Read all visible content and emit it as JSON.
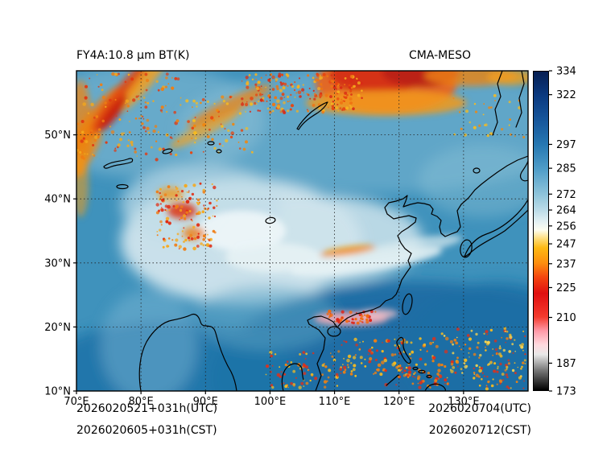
{
  "figure": {
    "title_left": "FY4A:10.8 μm BT(K)",
    "title_right": "CMA-MESO"
  },
  "footer": {
    "init_utc": "2026020521+031h(UTC)",
    "init_cst": "2026020605+031h(CST)",
    "valid_utc": "2026020704(UTC)",
    "valid_cst": "2026020712(CST)"
  },
  "chart_data": {
    "type": "heatmap",
    "title": "FY4A:10.8 μm BT(K)",
    "model": "CMA-MESO",
    "units": "K",
    "grid": true,
    "x_axis": {
      "range": [
        70,
        140
      ],
      "ticks": [
        {
          "value": 70,
          "label": "70°E"
        },
        {
          "value": 80,
          "label": "80°E"
        },
        {
          "value": 90,
          "label": "90°E"
        },
        {
          "value": 100,
          "label": "100°E"
        },
        {
          "value": 110,
          "label": "110°E"
        },
        {
          "value": 120,
          "label": "120°E"
        },
        {
          "value": 130,
          "label": "130°E"
        }
      ]
    },
    "y_axis": {
      "range": [
        10,
        60
      ],
      "ticks": [
        {
          "value": 10,
          "label": "10°N"
        },
        {
          "value": 20,
          "label": "20°N"
        },
        {
          "value": 30,
          "label": "30°N"
        },
        {
          "value": 40,
          "label": "40°N"
        },
        {
          "value": 50,
          "label": "50°N"
        }
      ]
    },
    "colorbar": {
      "min": 173,
      "max": 334,
      "ticks": [
        334,
        322,
        297,
        285,
        272,
        264,
        256,
        247,
        237,
        225,
        210,
        187,
        173
      ],
      "stops": [
        {
          "value": 173,
          "color": "#000000"
        },
        {
          "value": 183,
          "color": "#777777"
        },
        {
          "value": 191,
          "color": "#e8e8e8"
        },
        {
          "value": 196,
          "color": "#ffd9de"
        },
        {
          "value": 203,
          "color": "#ff9aa8"
        },
        {
          "value": 210,
          "color": "#f43b2e"
        },
        {
          "value": 222,
          "color": "#e01010"
        },
        {
          "value": 230,
          "color": "#f4450f"
        },
        {
          "value": 237,
          "color": "#fd8d0e"
        },
        {
          "value": 245,
          "color": "#fdb913"
        },
        {
          "value": 249,
          "color": "#fed86b"
        },
        {
          "value": 254,
          "color": "#fdfdf0"
        },
        {
          "value": 258,
          "color": "#e5f1f3"
        },
        {
          "value": 264,
          "color": "#bcdce8"
        },
        {
          "value": 272,
          "color": "#8ec4da"
        },
        {
          "value": 285,
          "color": "#4e9cc8"
        },
        {
          "value": 297,
          "color": "#2678b2"
        },
        {
          "value": 310,
          "color": "#16559a"
        },
        {
          "value": 322,
          "color": "#0b3a80"
        },
        {
          "value": 334,
          "color": "#071f52"
        }
      ]
    }
  }
}
